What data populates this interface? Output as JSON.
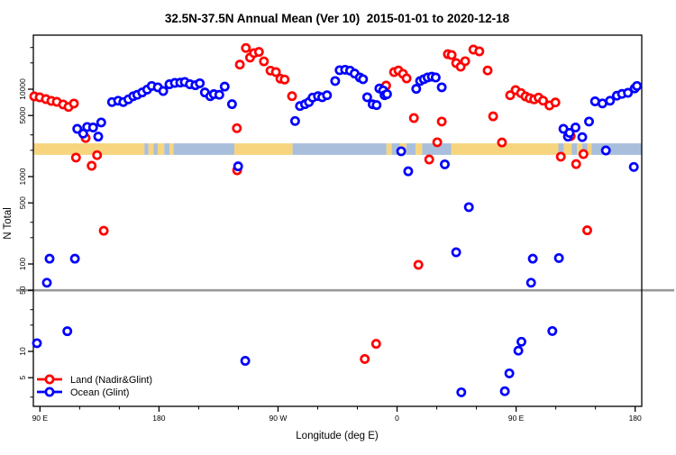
{
  "title": "32.5N-37.5N Annual Mean (Ver 10)  2015-01-01 to 2020-12-18",
  "colors": {
    "land_series": "#ff0000",
    "ocean_series": "#0000ff",
    "strip_land": "#f6d57e",
    "strip_ocean": "#a9bedb",
    "reference_line": "#999999",
    "axis": "#000000"
  },
  "chart_data": {
    "type": "scatter",
    "title": "32.5N-37.5N Annual Mean (Ver 10)  2015-01-01 to 2020-12-18",
    "xlabel": "Longitude (deg E)",
    "ylabel": "N Total",
    "x_axis": {
      "min": 85,
      "max": 545,
      "minor_step": 30,
      "major_ticks": [
        {
          "lon": 90,
          "label": "90 E"
        },
        {
          "lon": 180,
          "label": "180"
        },
        {
          "lon": 270,
          "label": "90 W"
        },
        {
          "lon": 360,
          "label": "0"
        },
        {
          "lon": 450,
          "label": "90 E"
        },
        {
          "lon": 540,
          "label": "180"
        }
      ]
    },
    "y_axis": {
      "log": true,
      "min": 2.35,
      "max": 41000,
      "labeled_ticks": [
        5,
        10,
        50,
        100,
        500,
        1000,
        5000,
        10000
      ],
      "minor_ticks": [
        3,
        20,
        30,
        200,
        300,
        2000,
        3000,
        20000,
        30000
      ]
    },
    "reference_line_value": 50,
    "surface_strip": {
      "value_top": 2400,
      "value_bottom": 1770,
      "segments": [
        {
          "from": 85,
          "to": 169,
          "type": "land"
        },
        {
          "from": 169,
          "to": 172,
          "type": "ocean"
        },
        {
          "from": 172,
          "to": 176,
          "type": "land"
        },
        {
          "from": 176,
          "to": 179,
          "type": "ocean"
        },
        {
          "from": 179,
          "to": 184,
          "type": "land"
        },
        {
          "from": 184,
          "to": 188,
          "type": "ocean"
        },
        {
          "from": 188,
          "to": 191,
          "type": "land"
        },
        {
          "from": 191,
          "to": 237,
          "type": "ocean"
        },
        {
          "from": 237,
          "to": 281,
          "type": "land"
        },
        {
          "from": 281,
          "to": 352,
          "type": "ocean"
        },
        {
          "from": 352,
          "to": 356,
          "type": "land"
        },
        {
          "from": 356,
          "to": 362,
          "type": "ocean"
        },
        {
          "from": 362,
          "to": 367,
          "type": "land"
        },
        {
          "from": 367,
          "to": 374,
          "type": "ocean"
        },
        {
          "from": 374,
          "to": 379,
          "type": "land"
        },
        {
          "from": 379,
          "to": 401,
          "type": "ocean"
        },
        {
          "from": 401,
          "to": 482,
          "type": "land"
        },
        {
          "from": 482,
          "to": 486,
          "type": "ocean"
        },
        {
          "from": 486,
          "to": 492,
          "type": "land"
        },
        {
          "from": 492,
          "to": 496,
          "type": "ocean"
        },
        {
          "from": 496,
          "to": 500,
          "type": "land"
        },
        {
          "from": 500,
          "to": 504,
          "type": "ocean"
        },
        {
          "from": 504,
          "to": 507,
          "type": "land"
        },
        {
          "from": 507,
          "to": 545,
          "type": "ocean"
        }
      ]
    },
    "series": [
      {
        "name": "Land (Nadir&Glint)",
        "color_key": "land_series",
        "points": [
          [
            85.7,
            8270
          ],
          [
            89.8,
            8080
          ],
          [
            94.5,
            7700
          ],
          [
            98.6,
            7350
          ],
          [
            102.7,
            7180
          ],
          [
            107.5,
            6700
          ],
          [
            111.6,
            6260
          ],
          [
            115.7,
            6860
          ],
          [
            117.2,
            1650
          ],
          [
            124.5,
            2760
          ],
          [
            129.1,
            1330
          ],
          [
            133.2,
            1760
          ],
          [
            138.2,
            240
          ],
          [
            238.9,
            3580
          ],
          [
            239.1,
            1180
          ],
          [
            241.1,
            19100
          ],
          [
            245.7,
            29600
          ],
          [
            248.8,
            23000
          ],
          [
            251.8,
            25900
          ],
          [
            255.6,
            26700
          ],
          [
            259.3,
            20800
          ],
          [
            264.3,
            16300
          ],
          [
            268.4,
            15700
          ],
          [
            271.8,
            13200
          ],
          [
            275.0,
            12900
          ],
          [
            280.6,
            8330
          ],
          [
            335.6,
            8.2
          ],
          [
            344.2,
            12.2
          ],
          [
            351.7,
            11000
          ],
          [
            357.7,
            15700
          ],
          [
            361.1,
            16400
          ],
          [
            364.5,
            15000
          ],
          [
            367.2,
            13300
          ],
          [
            372.7,
            4680
          ],
          [
            376.1,
            98
          ],
          [
            384.3,
            1570
          ],
          [
            390.4,
            2470
          ],
          [
            393.8,
            4260
          ],
          [
            398.4,
            25200
          ],
          [
            401.3,
            24600
          ],
          [
            404.7,
            19900
          ],
          [
            408.1,
            18100
          ],
          [
            411.5,
            20900
          ],
          [
            417.7,
            28400
          ],
          [
            422.2,
            27100
          ],
          [
            428.5,
            16400
          ],
          [
            432.6,
            4900
          ],
          [
            439.3,
            2460
          ],
          [
            445.5,
            8520
          ],
          [
            449.6,
            9770
          ],
          [
            453.7,
            9030
          ],
          [
            457.1,
            8270
          ],
          [
            460.2,
            7890
          ],
          [
            463.6,
            7650
          ],
          [
            467.0,
            8020
          ],
          [
            470.4,
            7400
          ],
          [
            475.2,
            6520
          ],
          [
            479.7,
            7050
          ],
          [
            483.8,
            1690
          ],
          [
            491.3,
            2910
          ],
          [
            495.4,
            1390
          ],
          [
            500.9,
            1810
          ],
          [
            503.8,
            243
          ]
        ]
      },
      {
        "name": "Ocean (Glint)",
        "color_key": "ocean_series",
        "points": [
          [
            87.7,
            12.4
          ],
          [
            95.2,
            61
          ],
          [
            97.3,
            115
          ],
          [
            110.7,
            17
          ],
          [
            116.4,
            115
          ],
          [
            118.2,
            3520
          ],
          [
            122.7,
            3100
          ],
          [
            125.7,
            3700
          ],
          [
            130.2,
            3650
          ],
          [
            134.1,
            2870
          ],
          [
            136.3,
            4160
          ],
          [
            144.5,
            7120
          ],
          [
            149.1,
            7380
          ],
          [
            153.0,
            7120
          ],
          [
            156.8,
            7640
          ],
          [
            160.5,
            8300
          ],
          [
            163.6,
            8630
          ],
          [
            167.3,
            9180
          ],
          [
            171.1,
            9900
          ],
          [
            174.5,
            10900
          ],
          [
            179.1,
            10500
          ],
          [
            183.2,
            9530
          ],
          [
            187.9,
            11400
          ],
          [
            192.0,
            11800
          ],
          [
            196.1,
            11900
          ],
          [
            199.5,
            12100
          ],
          [
            203.4,
            11400
          ],
          [
            207.5,
            11100
          ],
          [
            210.9,
            11700
          ],
          [
            214.7,
            9180
          ],
          [
            218.8,
            8300
          ],
          [
            221.5,
            8770
          ],
          [
            225.6,
            8630
          ],
          [
            229.7,
            10700
          ],
          [
            235.2,
            6740
          ],
          [
            239.8,
            1310
          ],
          [
            245.2,
            7.8
          ],
          [
            282.9,
            4330
          ],
          [
            286.6,
            6420
          ],
          [
            290.4,
            6730
          ],
          [
            293.4,
            7120
          ],
          [
            296.1,
            8020
          ],
          [
            300.2,
            8330
          ],
          [
            303.4,
            8100
          ],
          [
            307.0,
            8520
          ],
          [
            313.2,
            12400
          ],
          [
            316.6,
            16500
          ],
          [
            320.7,
            16700
          ],
          [
            324.5,
            16300
          ],
          [
            327.9,
            15100
          ],
          [
            331.8,
            13600
          ],
          [
            334.3,
            13000
          ],
          [
            337.4,
            8100
          ],
          [
            341.5,
            6730
          ],
          [
            344.5,
            6580
          ],
          [
            346.6,
            10200
          ],
          [
            349.5,
            9670
          ],
          [
            350.6,
            8520
          ],
          [
            352.4,
            8770
          ],
          [
            363.1,
            1950
          ],
          [
            368.4,
            1150
          ],
          [
            374.5,
            10100
          ],
          [
            377.4,
            12400
          ],
          [
            380.2,
            13000
          ],
          [
            383.1,
            13600
          ],
          [
            386.3,
            13900
          ],
          [
            389.2,
            13600
          ],
          [
            393.8,
            10500
          ],
          [
            396.1,
            1380
          ],
          [
            404.7,
            136
          ],
          [
            408.6,
            3.4
          ],
          [
            414.3,
            447
          ],
          [
            441.5,
            3.5
          ],
          [
            444.9,
            5.6
          ],
          [
            451.7,
            10.2
          ],
          [
            454.0,
            12.9
          ],
          [
            461.3,
            61
          ],
          [
            462.6,
            115
          ],
          [
            477.4,
            17.1
          ],
          [
            482.4,
            117
          ],
          [
            485.8,
            3520
          ],
          [
            489.2,
            2870
          ],
          [
            490.4,
            3160
          ],
          [
            494.9,
            3650
          ],
          [
            500.0,
            2830
          ],
          [
            505.1,
            4260
          ],
          [
            517.9,
            1990
          ],
          [
            539.0,
            1290
          ],
          [
            509.7,
            7250
          ],
          [
            515.3,
            6880
          ],
          [
            521.0,
            7380
          ],
          [
            526.2,
            8430
          ],
          [
            530.1,
            8830
          ],
          [
            534.6,
            9090
          ],
          [
            539.6,
            10200
          ],
          [
            541.4,
            10900
          ]
        ]
      }
    ],
    "legend": {
      "position": "bottom-left",
      "items": [
        "Land (Nadir&Glint)",
        "Ocean (Glint)"
      ]
    }
  }
}
